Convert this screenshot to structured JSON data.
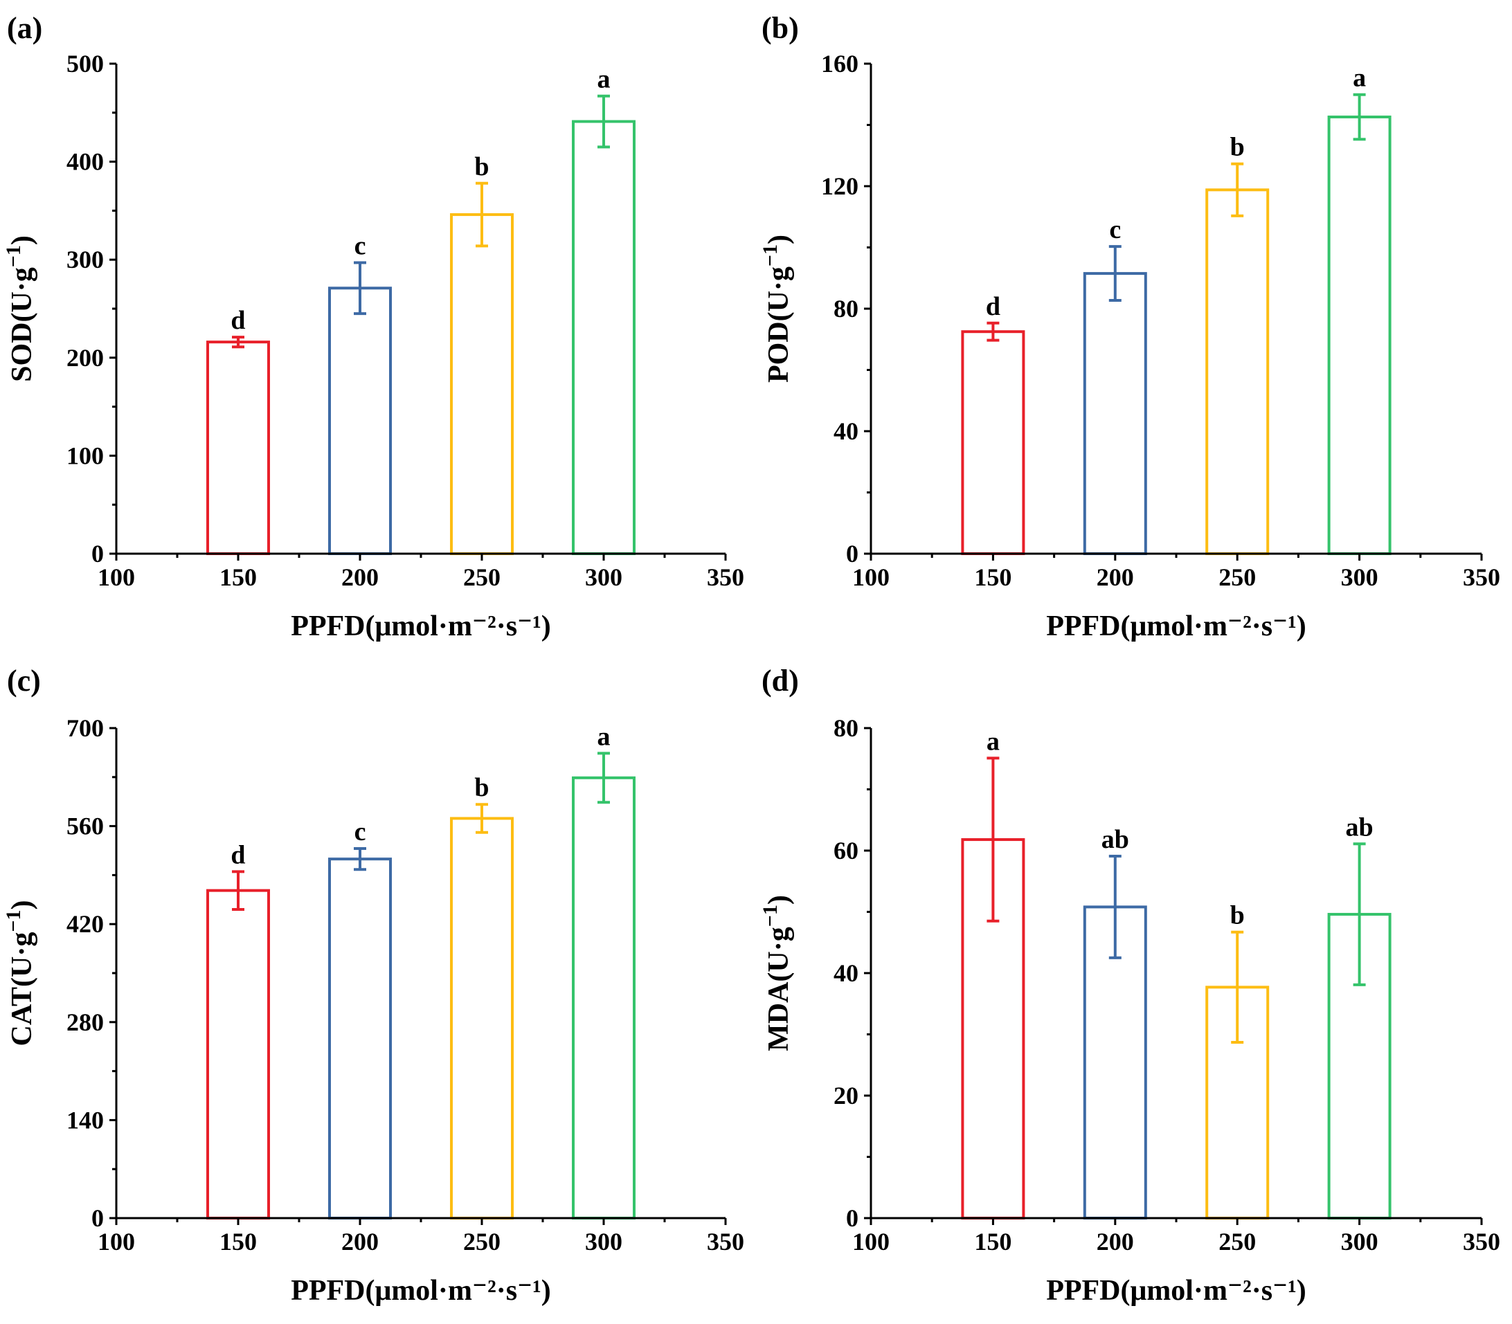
{
  "figure": {
    "colors": [
      "#e8202a",
      "#3d6aa5",
      "#fdbd13",
      "#35c36b"
    ],
    "categories": [
      150,
      200,
      250,
      300
    ]
  },
  "chart_data": [
    {
      "type": "bar",
      "panel": "(a)",
      "ylabel": "SOD(U·g",
      "ylabel_sup": "−1",
      "ylabel_close": ")",
      "xlabel": "PPFD(μmol·m⁻²·s⁻¹)",
      "xlim": [
        100,
        350
      ],
      "xticks": [
        100,
        150,
        200,
        250,
        300,
        350
      ],
      "ylim": [
        0,
        500
      ],
      "yticks": [
        0,
        100,
        200,
        300,
        400,
        500
      ],
      "x": [
        150,
        200,
        250,
        300
      ],
      "values": [
        216,
        271,
        346,
        441
      ],
      "errors": [
        5,
        26,
        32,
        26
      ],
      "labels": [
        "d",
        "c",
        "b",
        "a"
      ]
    },
    {
      "type": "bar",
      "panel": "(b)",
      "ylabel": "POD(U·g",
      "ylabel_sup": "−1",
      "ylabel_close": ")",
      "xlabel": "PPFD(μmol·m⁻²·s⁻¹)",
      "xlim": [
        100,
        350
      ],
      "xticks": [
        100,
        150,
        200,
        250,
        300,
        350
      ],
      "ylim": [
        0,
        160
      ],
      "yticks": [
        0,
        40,
        80,
        120,
        160
      ],
      "x": [
        150,
        200,
        250,
        300
      ],
      "values": [
        72.5,
        91.5,
        118.8,
        142.6
      ],
      "errors": [
        2.8,
        8.8,
        8.5,
        7.3
      ],
      "labels": [
        "d",
        "c",
        "b",
        "a"
      ]
    },
    {
      "type": "bar",
      "panel": "(c)",
      "ylabel": "CAT(U·g",
      "ylabel_sup": "−1",
      "ylabel_close": ")",
      "xlabel": "PPFD(μmol·m⁻²·s⁻¹)",
      "xlim": [
        100,
        350
      ],
      "xticks": [
        100,
        150,
        200,
        250,
        300,
        350
      ],
      "ylim": [
        0,
        700
      ],
      "yticks": [
        0,
        140,
        280,
        420,
        560,
        700
      ],
      "x": [
        150,
        200,
        250,
        300
      ],
      "values": [
        468,
        513,
        571,
        629
      ],
      "errors": [
        27,
        15,
        20,
        35
      ],
      "labels": [
        "d",
        "c",
        "b",
        "a"
      ]
    },
    {
      "type": "bar",
      "panel": "(d)",
      "ylabel": "MDA(U·g",
      "ylabel_sup": "−1",
      "ylabel_close": ")",
      "xlabel": "PPFD(μmol·m⁻²·s⁻¹)",
      "xlim": [
        100,
        350
      ],
      "xticks": [
        100,
        150,
        200,
        250,
        300,
        350
      ],
      "ylim": [
        0,
        80
      ],
      "yticks": [
        0,
        20,
        40,
        60,
        80
      ],
      "x": [
        150,
        200,
        250,
        300
      ],
      "values": [
        61.8,
        50.8,
        37.7,
        49.6
      ],
      "errors": [
        13.3,
        8.3,
        9.0,
        11.5
      ],
      "labels": [
        "a",
        "ab",
        "b",
        "ab"
      ]
    }
  ]
}
